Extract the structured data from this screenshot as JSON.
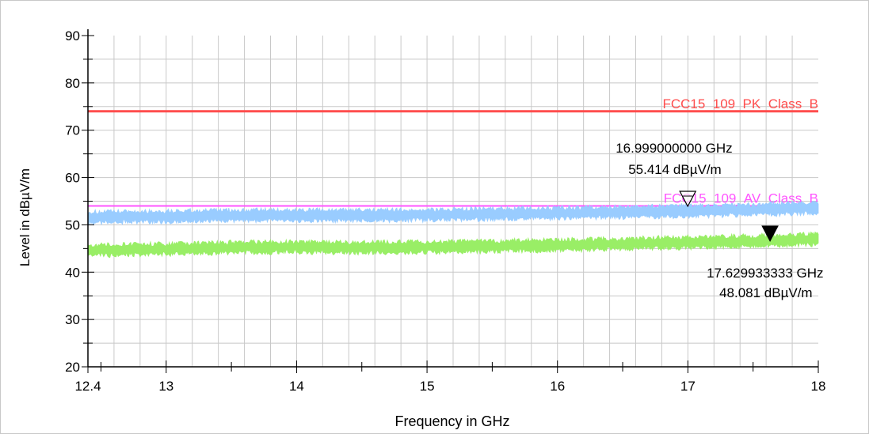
{
  "chart_data": {
    "type": "line",
    "title": "",
    "xlabel": "Frequency in GHz",
    "ylabel": "Level in dBµV/m",
    "xlim": [
      12.4,
      18
    ],
    "ylim": [
      20,
      90
    ],
    "x_ticks": [
      "12.4",
      "13",
      "14",
      "15",
      "16",
      "17",
      "18"
    ],
    "y_ticks": [
      "20",
      "30",
      "40",
      "50",
      "60",
      "70",
      "80",
      "90"
    ],
    "grid": true,
    "limit_lines": [
      {
        "name": "FCC15_109_PK_Class_B",
        "value": 74,
        "color": "#ff4d4d"
      },
      {
        "name": "FCC15_109_AV_Class_B",
        "value": 54,
        "color": "#ff55ff"
      }
    ],
    "series": [
      {
        "color": "#99ccff",
        "x": [
          12.4,
          13.0,
          13.5,
          14.0,
          14.5,
          15.0,
          15.5,
          16.0,
          16.5,
          17.0,
          17.5,
          18.0
        ],
        "values": [
          51.6,
          51.8,
          52.0,
          52.0,
          52.0,
          52.1,
          52.3,
          52.5,
          52.7,
          52.9,
          53.2,
          53.6
        ]
      },
      {
        "color": "#99ee66",
        "x": [
          12.4,
          13.0,
          13.5,
          14.0,
          14.5,
          15.0,
          15.5,
          16.0,
          16.5,
          17.0,
          17.5,
          18.0
        ],
        "values": [
          44.6,
          44.9,
          45.2,
          45.3,
          45.2,
          45.3,
          45.5,
          45.7,
          46.0,
          46.3,
          46.6,
          47.0
        ]
      }
    ],
    "markers": [
      {
        "x": 16.999,
        "y": 55.414,
        "style": "open-triangle",
        "label_freq": "16.999000000 GHz",
        "label_level": "55.414 dBµV/m"
      },
      {
        "x": 17.629933333,
        "y": 48.081,
        "style": "filled-triangle",
        "label_freq": "17.629933333 GHz",
        "label_level": "48.081 dBµV/m"
      }
    ]
  }
}
